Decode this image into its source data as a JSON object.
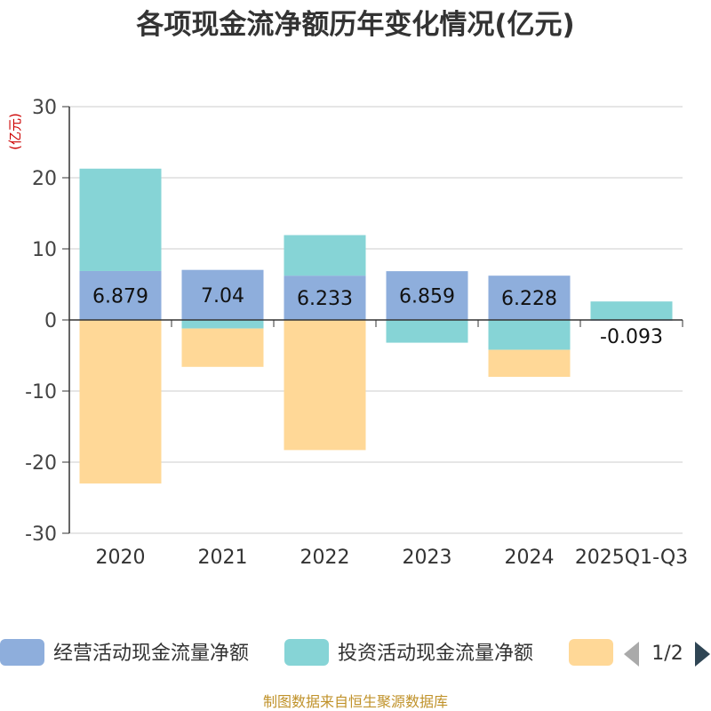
{
  "chart_data": {
    "type": "bar",
    "stacked": true,
    "title": "各项现金流净额历年变化情况(亿元)",
    "ylabel": "(亿元)",
    "ylim": [
      -30,
      30
    ],
    "yticks": [
      30,
      20,
      10,
      0,
      -10,
      -20,
      -30
    ],
    "categories": [
      "2020",
      "2021",
      "2022",
      "2023",
      "2024",
      "2025Q1-Q3"
    ],
    "series": [
      {
        "name": "经营活动现金流量净额",
        "color": "#8eaedc",
        "values": [
          6.879,
          7.04,
          6.233,
          6.859,
          6.228,
          -0.093
        ]
      },
      {
        "name": "投资活动现金流量净额",
        "color": "#86d4d6",
        "values": [
          14.4,
          -1.2,
          5.7,
          -3.2,
          -4.2,
          2.6
        ]
      },
      {
        "name": "",
        "color": "#ffd897",
        "values": [
          -23.0,
          -5.4,
          -18.3,
          0,
          -3.8,
          0
        ]
      }
    ],
    "data_labels": [
      "6.879",
      "7.04",
      "6.233",
      "6.859",
      "6.228",
      "-0.093"
    ],
    "legend": {
      "position": "bottom",
      "page": "1/2"
    },
    "source": "制图数据来自恒生聚源数据库"
  }
}
